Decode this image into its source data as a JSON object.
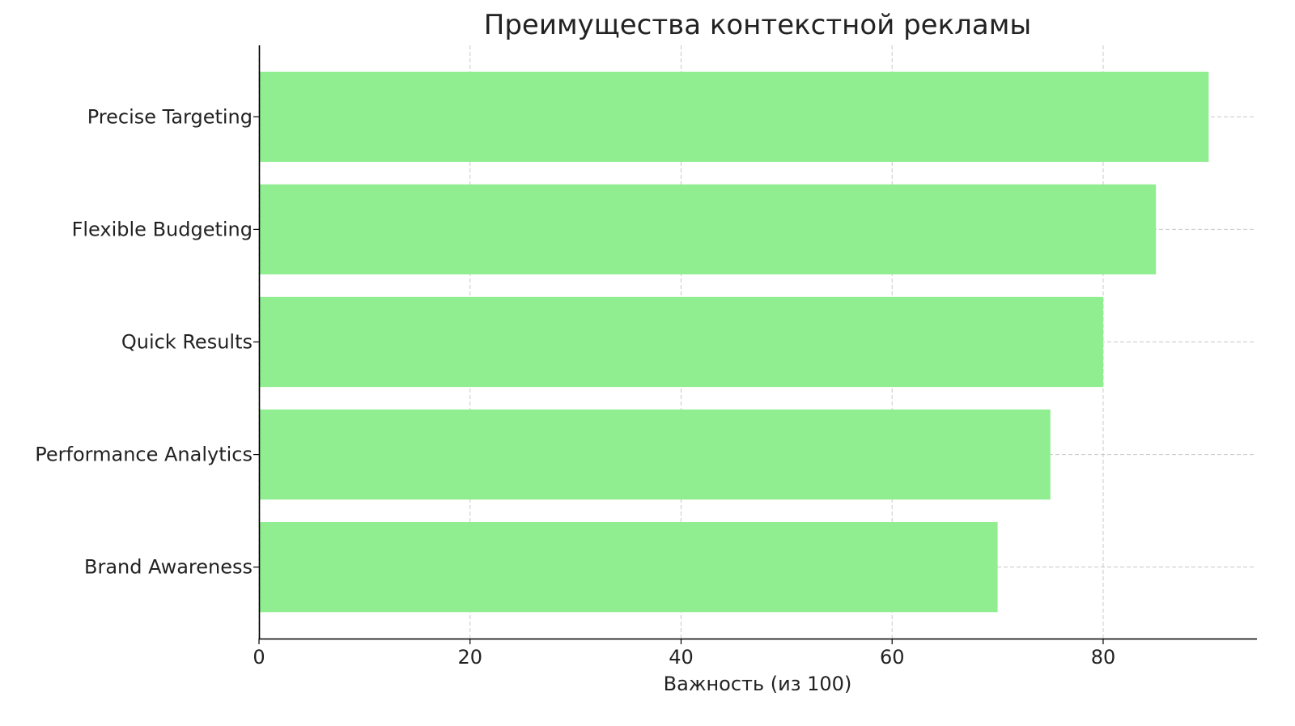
{
  "chart_data": {
    "type": "bar",
    "orientation": "horizontal",
    "title": "Преимущества контекстной рекламы",
    "xlabel": "Важность (из 100)",
    "ylabel": "",
    "categories": [
      "Precise Targeting",
      "Flexible Budgeting",
      "Quick Results",
      "Performance Analytics",
      "Brand Awareness"
    ],
    "values": [
      90,
      85,
      80,
      75,
      70
    ],
    "xlim": [
      0,
      94.5
    ],
    "xticks": [
      0,
      20,
      40,
      60,
      80
    ],
    "grid": true,
    "bar_color": "#90EE90"
  }
}
